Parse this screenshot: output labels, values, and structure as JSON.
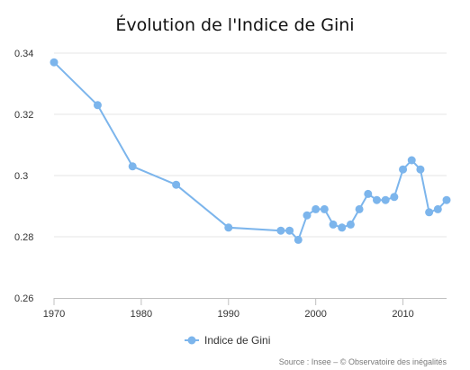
{
  "chart_data": {
    "type": "line",
    "title": "Évolution de l'Indice de Gini",
    "xlabel": "",
    "ylabel": "",
    "xlim": [
      1970,
      2015
    ],
    "ylim": [
      0.26,
      0.34
    ],
    "x_ticks": [
      1970,
      1980,
      1990,
      2000,
      2010
    ],
    "y_ticks": [
      0.26,
      0.28,
      0.3,
      0.32,
      0.34
    ],
    "x_tick_labels": [
      "1970",
      "1980",
      "1990",
      "2000",
      "2010"
    ],
    "y_tick_labels": [
      "0.26",
      "0.28",
      "0.3",
      "0.32",
      "0.34"
    ],
    "grid": "horizontal",
    "legend_position": "bottom-center",
    "series": [
      {
        "name": "Indice de Gini",
        "color": "#7cb5ec",
        "x": [
          1970,
          1975,
          1979,
          1984,
          1990,
          1996,
          1997,
          1998,
          1999,
          2000,
          2001,
          2002,
          2003,
          2004,
          2005,
          2006,
          2007,
          2008,
          2009,
          2010,
          2011,
          2012,
          2013,
          2014,
          2015
        ],
        "values": [
          0.337,
          0.323,
          0.303,
          0.297,
          0.283,
          0.282,
          0.282,
          0.279,
          0.287,
          0.289,
          0.289,
          0.284,
          0.283,
          0.284,
          0.289,
          0.294,
          0.292,
          0.292,
          0.293,
          0.302,
          0.305,
          0.302,
          0.288,
          0.289,
          0.292
        ]
      }
    ],
    "credits": "Source : Insee – © Observatoire des inégalités"
  }
}
